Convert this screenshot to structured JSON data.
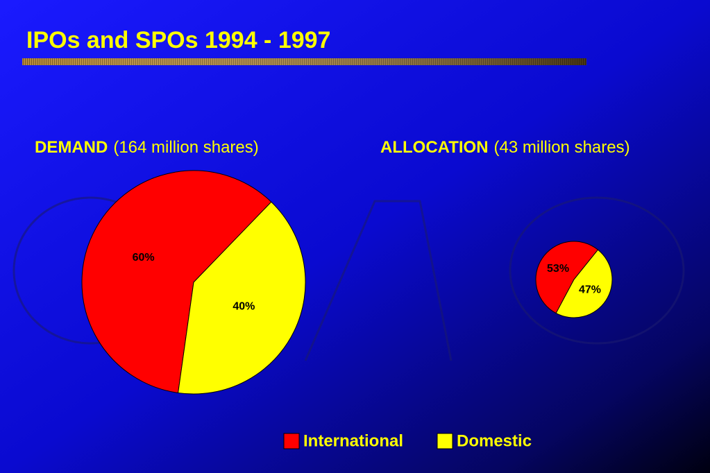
{
  "title": "IPOs and SPOs 1994 - 1997",
  "chart_data": [
    {
      "type": "pie",
      "title": "DEMAND",
      "subtitle": "(164 million shares)",
      "categories": [
        "International",
        "Domestic"
      ],
      "values": [
        60,
        40
      ],
      "value_labels": [
        "60%",
        "40%"
      ],
      "colors": [
        "#ff0000",
        "#ffff00"
      ]
    },
    {
      "type": "pie",
      "title": "ALLOCATION",
      "subtitle": "(43 million shares)",
      "categories": [
        "International",
        "Domestic"
      ],
      "values": [
        53,
        47
      ],
      "value_labels": [
        "53%",
        "47%"
      ],
      "colors": [
        "#ff0000",
        "#ffff00"
      ]
    }
  ]
}
